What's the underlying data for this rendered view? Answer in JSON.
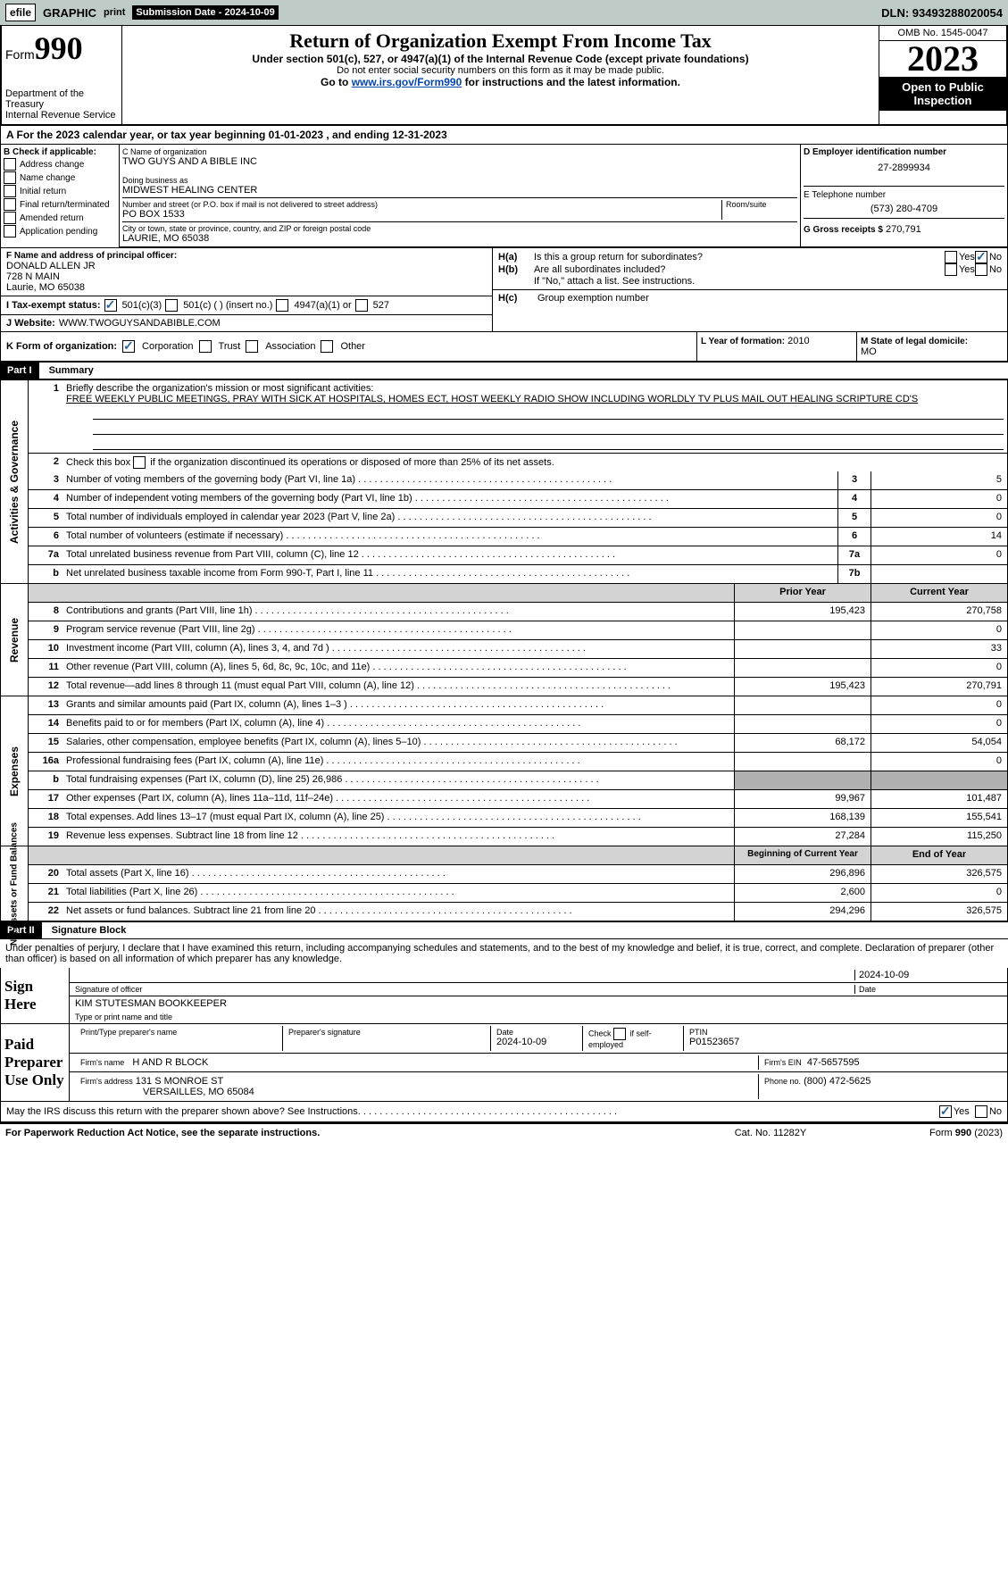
{
  "topbar": {
    "efile_box": "efile",
    "graphic": "GRAPHIC",
    "print": "print",
    "sub_label": "Submission Date - 2024-10-09",
    "dln": "DLN: 93493288020054"
  },
  "header": {
    "form_word": "Form",
    "form_no": "990",
    "dept": "Department of the Treasury",
    "irs": "Internal Revenue Service",
    "title": "Return of Organization Exempt From Income Tax",
    "sub1": "Under section 501(c), 527, or 4947(a)(1) of the Internal Revenue Code (except private foundations)",
    "sub2": "Do not enter social security numbers on this form as it may be made public.",
    "goto_pre": "Go to ",
    "goto_link": "www.irs.gov/Form990",
    "goto_post": " for instructions and the latest information.",
    "omb": "OMB No. 1545-0047",
    "year": "2023",
    "open": "Open to Public Inspection"
  },
  "rowA": "A For the 2023 calendar year, or tax year beginning 01-01-2023    , and ending 12-31-2023",
  "colB": {
    "label": "B Check if applicable:",
    "items": [
      "Address change",
      "Name change",
      "Initial return",
      "Final return/terminated",
      "Amended return",
      "Application pending"
    ]
  },
  "boxC": {
    "name_lbl": "C Name of organization",
    "name": "TWO GUYS AND A BIBLE INC",
    "dba_lbl": "Doing business as",
    "dba": "MIDWEST HEALING CENTER",
    "addr_lbl": "Number and street (or P.O. box if mail is not delivered to street address)",
    "addr": "PO BOX 1533",
    "room_lbl": "Room/suite",
    "city_lbl": "City or town, state or province, country, and ZIP or foreign postal code",
    "city": "Laurie, MO  65038"
  },
  "boxD": {
    "lbl": "D Employer identification number",
    "val": "27-2899934"
  },
  "boxE": {
    "lbl": "E Telephone number",
    "val": "(573) 280-4709"
  },
  "boxG": {
    "lbl": "G Gross receipts $",
    "val": "270,791"
  },
  "boxF": {
    "lbl": "F  Name and address of principal officer:",
    "l1": "DONALD ALLEN JR",
    "l2": "728 N MAIN",
    "l3": "Laurie, MO  65038"
  },
  "boxH": {
    "a": "H(a)  Is this a group return for subordinates?",
    "b": "H(b)  Are all subordinates included?",
    "bnote": "If \"No,\" attach a list. See instructions.",
    "c": "H(c)  Group exemption number",
    "yes": "Yes",
    "no": "No"
  },
  "rowI": {
    "lbl": "I  Tax-exempt status:",
    "o1": "501(c)(3)",
    "o2": "501(c) (  ) (insert no.)",
    "o3": "4947(a)(1) or",
    "o4": "527"
  },
  "rowJ": {
    "lbl": "J  Website:",
    "val": "WWW.TWOGUYSANDABIBLE.COM"
  },
  "rowK": {
    "lbl": "K Form of organization:",
    "o1": "Corporation",
    "o2": "Trust",
    "o3": "Association",
    "o4": "Other"
  },
  "rowL": {
    "lbl": "L Year of formation:",
    "val": "2010"
  },
  "rowM": {
    "lbl": "M State of legal domicile:",
    "val": "MO"
  },
  "partI": {
    "num": "Part I",
    "title": "Summary"
  },
  "summary": {
    "gov_label": "Activities & Governance",
    "q1_lbl": "Briefly describe the organization's mission or most significant activities:",
    "q1_val": "FREE WEEKLY PUBLIC MEETINGS, PRAY WITH SICK AT HOSPITALS, HOMES ECT, HOST WEEKLY RADIO SHOW INCLUDING WORLDLY TV PLUS MAIL OUT HEALING SCRIPTURE CD'S",
    "q2": "Check this box        if the organization discontinued its operations or disposed of more than 25% of its net assets.",
    "lines_gov": [
      {
        "n": "3",
        "t": "Number of voting members of the governing body (Part VI, line 1a)",
        "box": "3",
        "v": "5"
      },
      {
        "n": "4",
        "t": "Number of independent voting members of the governing body (Part VI, line 1b)",
        "box": "4",
        "v": "0"
      },
      {
        "n": "5",
        "t": "Total number of individuals employed in calendar year 2023 (Part V, line 2a)",
        "box": "5",
        "v": "0"
      },
      {
        "n": "6",
        "t": "Total number of volunteers (estimate if necessary)",
        "box": "6",
        "v": "14"
      },
      {
        "n": "7a",
        "t": "Total unrelated business revenue from Part VIII, column (C), line 12",
        "box": "7a",
        "v": "0"
      },
      {
        "n": "b",
        "t": "Net unrelated business taxable income from Form 990-T, Part I, line 11",
        "box": "7b",
        "v": ""
      }
    ],
    "rev_label": "Revenue",
    "py": "Prior Year",
    "cy": "Current Year",
    "lines_rev": [
      {
        "n": "8",
        "t": "Contributions and grants (Part VIII, line 1h)",
        "py": "195,423",
        "cy": "270,758"
      },
      {
        "n": "9",
        "t": "Program service revenue (Part VIII, line 2g)",
        "py": "",
        "cy": "0"
      },
      {
        "n": "10",
        "t": "Investment income (Part VIII, column (A), lines 3, 4, and 7d )",
        "py": "",
        "cy": "33"
      },
      {
        "n": "11",
        "t": "Other revenue (Part VIII, column (A), lines 5, 6d, 8c, 9c, 10c, and 11e)",
        "py": "",
        "cy": "0"
      },
      {
        "n": "12",
        "t": "Total revenue—add lines 8 through 11 (must equal Part VIII, column (A), line 12)",
        "py": "195,423",
        "cy": "270,791"
      }
    ],
    "exp_label": "Expenses",
    "lines_exp": [
      {
        "n": "13",
        "t": "Grants and similar amounts paid (Part IX, column (A), lines 1–3 )",
        "py": "",
        "cy": "0"
      },
      {
        "n": "14",
        "t": "Benefits paid to or for members (Part IX, column (A), line 4)",
        "py": "",
        "cy": "0"
      },
      {
        "n": "15",
        "t": "Salaries, other compensation, employee benefits (Part IX, column (A), lines 5–10)",
        "py": "68,172",
        "cy": "54,054"
      },
      {
        "n": "16a",
        "t": "Professional fundraising fees (Part IX, column (A), line 11e)",
        "py": "",
        "cy": "0"
      },
      {
        "n": "b",
        "t": "Total fundraising expenses (Part IX, column (D), line 25) 26,986",
        "py": "GREY",
        "cy": "GREY"
      },
      {
        "n": "17",
        "t": "Other expenses (Part IX, column (A), lines 11a–11d, 11f–24e)",
        "py": "99,967",
        "cy": "101,487"
      },
      {
        "n": "18",
        "t": "Total expenses. Add lines 13–17 (must equal Part IX, column (A), line 25)",
        "py": "168,139",
        "cy": "155,541"
      },
      {
        "n": "19",
        "t": "Revenue less expenses. Subtract line 18 from line 12",
        "py": "27,284",
        "cy": "115,250"
      }
    ],
    "na_label": "Net Assets or Fund Balances",
    "bcy": "Beginning of Current Year",
    "eoy": "End of Year",
    "lines_na": [
      {
        "n": "20",
        "t": "Total assets (Part X, line 16)",
        "py": "296,896",
        "cy": "326,575"
      },
      {
        "n": "21",
        "t": "Total liabilities (Part X, line 26)",
        "py": "2,600",
        "cy": "0"
      },
      {
        "n": "22",
        "t": "Net assets or fund balances. Subtract line 21 from line 20",
        "py": "294,296",
        "cy": "326,575"
      }
    ]
  },
  "partII": {
    "num": "Part II",
    "title": "Signature Block"
  },
  "perjury": "Under penalties of perjury, I declare that I have examined this return, including accompanying schedules and statements, and to the best of my knowledge and belief, it is true, correct, and complete. Declaration of preparer (other than officer) is based on all information of which preparer has any knowledge.",
  "sign": {
    "here": "Sign Here",
    "sig_lbl": "Signature of officer",
    "date_lbl": "Date",
    "date": "2024-10-09",
    "name": "KIM STUTESMAN BOOKKEEPER",
    "name_lbl": "Type or print name and title"
  },
  "paid": {
    "label": "Paid Preparer Use Only",
    "c1": "Print/Type preparer's name",
    "c2": "Preparer's signature",
    "c3": "Date",
    "c3v": "2024-10-09",
    "c4": "Check        if self-employed",
    "c5": "PTIN",
    "c5v": "P01523657",
    "firm_lbl": "Firm's name",
    "firm": "H AND R BLOCK",
    "ein_lbl": "Firm's EIN",
    "ein": "47-5657595",
    "addr_lbl": "Firm's address",
    "addr1": "131 S MONROE ST",
    "addr2": "VERSAILLES, MO  65084",
    "ph_lbl": "Phone no.",
    "ph": "(800) 472-5625"
  },
  "discuss": "May the IRS discuss this return with the preparer shown above? See Instructions.",
  "footer": {
    "l": "For Paperwork Reduction Act Notice, see the separate instructions.",
    "m": "Cat. No. 11282Y",
    "r": "Form 990 (2023)"
  }
}
